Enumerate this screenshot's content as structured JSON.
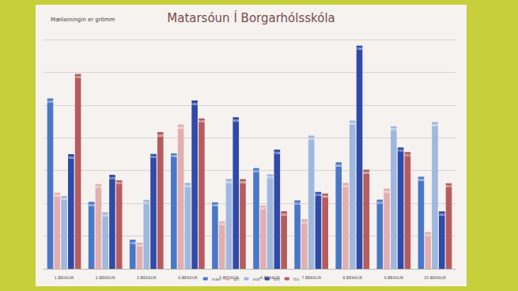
{
  "chart_data": {
    "type": "bar",
    "title": "Matarsóun Í Borgarhólsskóla",
    "subtitle": "Mælieiningin er grömm",
    "categories": [
      "1.BEKKUR",
      "2.BEKKUR",
      "3.BEKKUR",
      "4.BEKKUR",
      "5.BEKKUR",
      "6.BEKKUR",
      "7.BEKKUR",
      "8.BEKKUR",
      "9.BEKKUR",
      "10.BEKKUR"
    ],
    "series": [
      {
        "name": "mán",
        "color": "#4a78c8",
        "values": [
          1040,
          409,
          178,
          705,
          406,
          615,
          418,
          650,
          423,
          563
        ]
      },
      {
        "name": "þri",
        "color": "#e3aeb0",
        "values": [
          465,
          518,
          160,
          881,
          290,
          387,
          303,
          525,
          490,
          225
        ]
      },
      {
        "name": "mið",
        "color": "#9fb8de",
        "values": [
          445,
          345,
          421,
          525,
          549,
          577,
          814,
          905,
          870,
          897
        ]
      },
      {
        "name": "fim",
        "color": "#2f4aa8",
        "values": [
          700,
          574,
          701,
          1028,
          926,
          728,
          470,
          1363,
          741,
          351
        ]
      },
      {
        "name": "fös",
        "color": "#b65c5e",
        "values": [
          1190,
          541,
          835,
          919,
          548,
          352,
          460,
          606,
          713,
          522
        ]
      }
    ],
    "ylim": [
      0,
      1400
    ],
    "yticks": [
      0,
      200,
      400,
      600,
      800,
      1000,
      1200,
      1400
    ],
    "grid": true,
    "legend": "bottom",
    "data_labels": true,
    "tick_labels": "x"
  }
}
